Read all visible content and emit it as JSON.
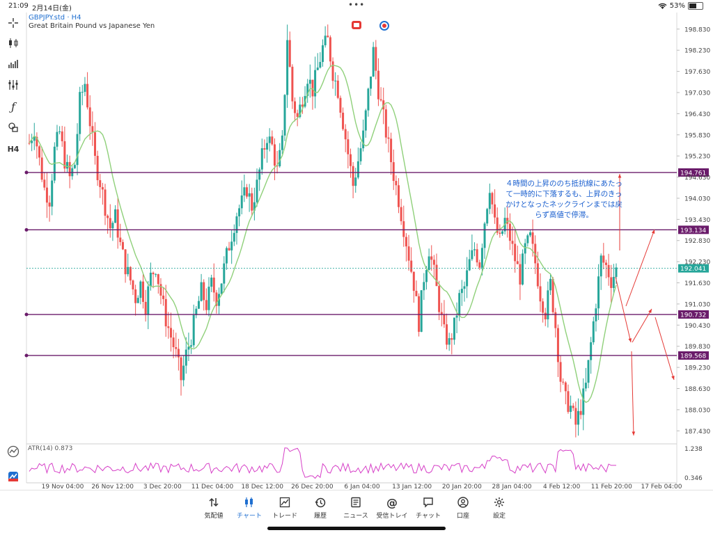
{
  "status": {
    "time": "21:09",
    "date": "2月14日(金)",
    "battery": "53%",
    "battery_level": 0.53
  },
  "chart": {
    "symbol": "GBPJPY.std",
    "timeframe": "H4",
    "symbol_line": "GBPJPY.std · H4",
    "description": "Great Britain Pound vs Japanese Yen",
    "timeframe_button": "H4"
  },
  "price_axis": [
    "198.830",
    "198.230",
    "197.630",
    "197.030",
    "196.430",
    "195.830",
    "195.230",
    "194.630",
    "194.030",
    "193.430",
    "192.830",
    "192.230",
    "191.630",
    "191.030",
    "190.430",
    "189.830",
    "189.230",
    "188.630",
    "188.030",
    "187.430"
  ],
  "levels": [
    {
      "price": "194.761",
      "color": "#6a1b6a"
    },
    {
      "price": "193.134",
      "color": "#6a1b6a"
    },
    {
      "price": "192.041",
      "color": "#26a69a"
    },
    {
      "price": "190.732",
      "color": "#6a1b6a"
    },
    {
      "price": "189.568",
      "color": "#6a1b6a"
    }
  ],
  "annotation": "４時間の上昇ののち抵抗線にあたって一時的に下落するも、上昇のきっかけとなったネックラインまでは戻らず高値で停滞。",
  "atr": {
    "label": "ATR(14) 0.873",
    "axis": [
      "1.238",
      "0.346"
    ]
  },
  "time_axis": [
    "19 Nov 04:00",
    "26 Nov 12:00",
    "3 Dec 20:00",
    "11 Dec 04:00",
    "18 Dec 12:00",
    "26 Dec 20:00",
    "6 Jan 04:00",
    "13 Jan 12:00",
    "20 Jan 20:00",
    "28 Jan 04:00",
    "4 Feb 12:00",
    "11 Feb 20:00",
    "17 Feb 04:00"
  ],
  "tabs": [
    {
      "label": "気配値",
      "icon": "quotes-icon"
    },
    {
      "label": "チャート",
      "icon": "candles-icon",
      "active": true
    },
    {
      "label": "トレード",
      "icon": "trade-icon"
    },
    {
      "label": "履歴",
      "icon": "history-icon"
    },
    {
      "label": "ニュース",
      "icon": "news-icon"
    },
    {
      "label": "受信トレイ",
      "icon": "inbox-icon"
    },
    {
      "label": "チャット",
      "icon": "chat-icon"
    },
    {
      "label": "口座",
      "icon": "account-icon"
    },
    {
      "label": "設定",
      "icon": "settings-icon"
    }
  ],
  "colors": {
    "bull": "#26a69a",
    "bear": "#ef5350",
    "ma": "#8fd07a",
    "atr": "#d63fc7",
    "level": "#6a1b6a",
    "arrow": "#e53935",
    "accent": "#1f6fd0"
  },
  "chart_data": {
    "type": "candlestick",
    "series": [
      {
        "name": "GBPJPY.std",
        "close_path": [
          [
            0,
            195.6
          ],
          [
            2,
            196.0
          ],
          [
            4,
            195.1
          ],
          [
            6,
            194.3
          ],
          [
            8,
            194.0
          ],
          [
            10,
            195.4
          ],
          [
            12,
            195.9
          ],
          [
            14,
            195.1
          ],
          [
            16,
            194.6
          ],
          [
            18,
            195.0
          ],
          [
            20,
            196.8
          ],
          [
            22,
            197.3
          ],
          [
            24,
            196.2
          ],
          [
            26,
            195.1
          ],
          [
            28,
            194.5
          ],
          [
            30,
            193.8
          ],
          [
            32,
            193.2
          ],
          [
            34,
            193.5
          ],
          [
            36,
            192.7
          ],
          [
            38,
            192.1
          ],
          [
            40,
            191.7
          ],
          [
            42,
            191.2
          ],
          [
            44,
            191.6
          ],
          [
            46,
            191.0
          ],
          [
            48,
            191.8
          ],
          [
            50,
            192.1
          ],
          [
            52,
            191.3
          ],
          [
            54,
            190.6
          ],
          [
            56,
            190.1
          ],
          [
            58,
            189.6
          ],
          [
            60,
            188.9
          ],
          [
            62,
            189.6
          ],
          [
            64,
            190.1
          ],
          [
            66,
            190.8
          ],
          [
            68,
            191.4
          ],
          [
            70,
            191.0
          ],
          [
            72,
            191.6
          ],
          [
            74,
            191.2
          ],
          [
            76,
            191.7
          ],
          [
            78,
            192.4
          ],
          [
            80,
            193.0
          ],
          [
            82,
            193.6
          ],
          [
            84,
            193.9
          ],
          [
            86,
            194.3
          ],
          [
            88,
            193.8
          ],
          [
            90,
            194.4
          ],
          [
            92,
            195.2
          ],
          [
            94,
            195.8
          ],
          [
            96,
            195.5
          ],
          [
            98,
            194.8
          ],
          [
            100,
            195.6
          ],
          [
            102,
            198.6
          ],
          [
            104,
            196.8
          ],
          [
            106,
            196.3
          ],
          [
            108,
            196.9
          ],
          [
            110,
            197.5
          ],
          [
            112,
            197.1
          ],
          [
            114,
            197.7
          ],
          [
            116,
            198.3
          ],
          [
            118,
            198.5
          ],
          [
            120,
            197.6
          ],
          [
            122,
            197.1
          ],
          [
            124,
            196.2
          ],
          [
            126,
            195.3
          ],
          [
            128,
            194.4
          ],
          [
            130,
            195.1
          ],
          [
            132,
            195.8
          ],
          [
            134,
            197.0
          ],
          [
            136,
            198.2
          ],
          [
            138,
            197.1
          ],
          [
            140,
            196.3
          ],
          [
            142,
            195.5
          ],
          [
            144,
            194.7
          ],
          [
            146,
            194.0
          ],
          [
            148,
            193.2
          ],
          [
            150,
            192.4
          ],
          [
            152,
            191.6
          ],
          [
            154,
            190.5
          ],
          [
            156,
            191.8
          ],
          [
            158,
            192.6
          ],
          [
            160,
            191.9
          ],
          [
            162,
            191.0
          ],
          [
            164,
            190.2
          ],
          [
            166,
            189.9
          ],
          [
            168,
            190.4
          ],
          [
            170,
            191.2
          ],
          [
            172,
            191.5
          ],
          [
            174,
            192.2
          ],
          [
            176,
            192.6
          ],
          [
            178,
            192.2
          ],
          [
            180,
            193.4
          ],
          [
            182,
            194.4
          ],
          [
            184,
            193.3
          ],
          [
            186,
            192.8
          ],
          [
            188,
            193.4
          ],
          [
            190,
            192.9
          ],
          [
            192,
            192.3
          ],
          [
            194,
            191.8
          ],
          [
            196,
            192.6
          ],
          [
            198,
            192.9
          ],
          [
            200,
            192.2
          ],
          [
            202,
            191.3
          ],
          [
            204,
            190.8
          ],
          [
            206,
            191.6
          ],
          [
            208,
            190.4
          ],
          [
            210,
            188.9
          ],
          [
            212,
            188.3
          ],
          [
            214,
            188.1
          ],
          [
            216,
            187.6
          ],
          [
            218,
            188.1
          ],
          [
            220,
            188.7
          ],
          [
            222,
            189.9
          ],
          [
            224,
            191.1
          ],
          [
            226,
            192.3
          ],
          [
            228,
            192.1
          ],
          [
            230,
            191.7
          ],
          [
            232,
            192.0
          ]
        ]
      },
      {
        "name": "MA",
        "type": "line"
      },
      {
        "name": "ATR(14)",
        "value": 0.873
      }
    ],
    "y_range": [
      187.1,
      199.3
    ],
    "atr_range": [
      0.346,
      1.238
    ]
  }
}
